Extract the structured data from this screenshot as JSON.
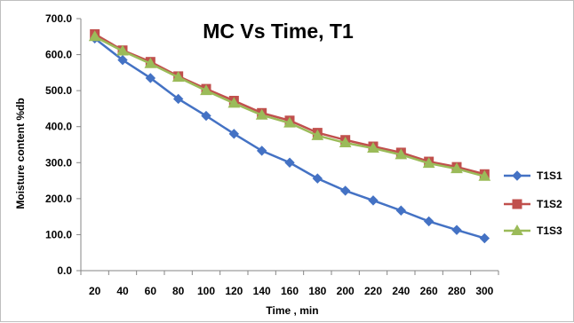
{
  "chart_data": {
    "type": "line",
    "title": "MC Vs Time, T1",
    "xlabel": "Time , min",
    "ylabel": "Moisture content  %db",
    "x": [
      20,
      40,
      60,
      80,
      100,
      120,
      140,
      160,
      180,
      200,
      220,
      240,
      260,
      280,
      300
    ],
    "ylim": [
      0,
      700
    ],
    "yticks": [
      "0.0",
      "100.0",
      "200.0",
      "300.0",
      "400.0",
      "500.0",
      "600.0",
      "700.0"
    ],
    "grid": false,
    "legend_position": "right",
    "series": [
      {
        "name": "T1S1",
        "color": "#4472C4",
        "marker": "diamond",
        "values": [
          645,
          585,
          535,
          477,
          430,
          380,
          333,
          300,
          256,
          222,
          195,
          167,
          137,
          113,
          90
        ]
      },
      {
        "name": "T1S2",
        "color": "#C0504D",
        "marker": "square",
        "values": [
          657,
          612,
          580,
          540,
          505,
          472,
          438,
          417,
          383,
          363,
          345,
          328,
          303,
          288,
          268
        ]
      },
      {
        "name": "T1S3",
        "color": "#9BBB59",
        "marker": "triangle",
        "values": [
          650,
          610,
          575,
          537,
          500,
          465,
          432,
          410,
          375,
          355,
          340,
          322,
          298,
          283,
          262
        ]
      }
    ]
  }
}
